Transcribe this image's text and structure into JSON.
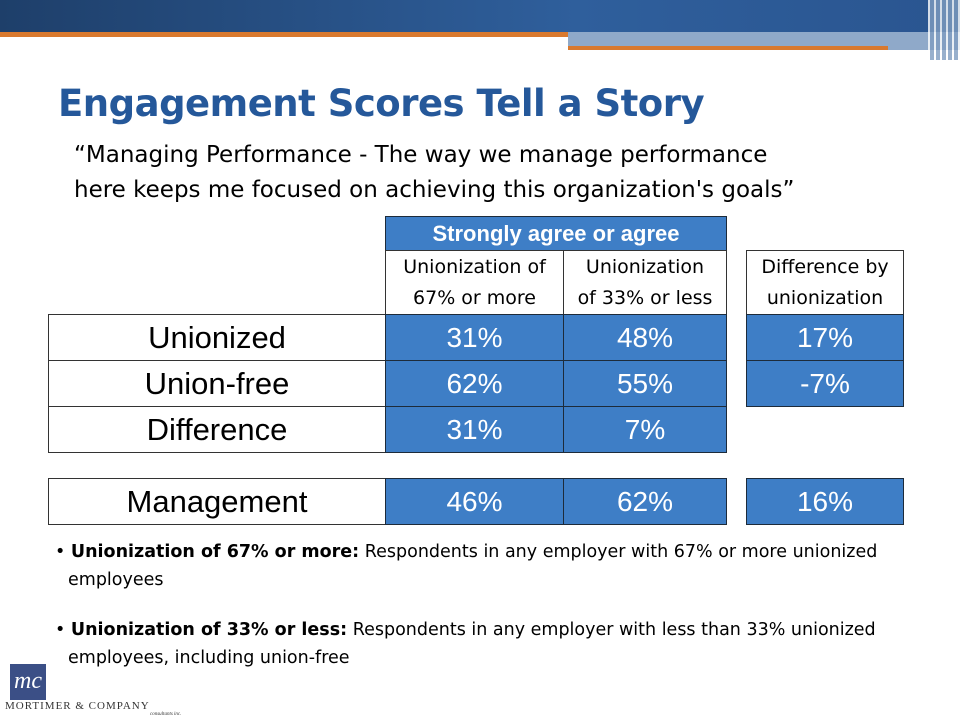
{
  "title": "Engagement Scores Tell a Story",
  "quote": [
    "“Managing Performance - The way we manage performance",
    "here keeps me focused on achieving this organization's goals”"
  ],
  "table": {
    "group_header": "Strongly agree or agree",
    "columns": [
      [
        "Unionization of",
        "67% or more"
      ],
      [
        "Unionization",
        "of 33% or less"
      ]
    ],
    "difference_header": [
      "Difference by",
      "unionization"
    ],
    "rows": [
      [
        "Unionized",
        "31%",
        "48%",
        "17%"
      ],
      [
        "Union-free",
        "62%",
        "55%",
        "-7%"
      ],
      [
        "Difference",
        "31%",
        "7%"
      ]
    ],
    "management": [
      "Management",
      "46%",
      "62%",
      "16%"
    ]
  },
  "notes": [
    {
      "term": "Unionization of 67% or more:",
      "text": "Respondents in any employer with 67% or more unionized employees"
    },
    {
      "term": "Unionization of 33% or less:",
      "text": "Respondents in any employer with less than 33% unionized employees, including union-free"
    }
  ],
  "logo": {
    "mark": "mc",
    "name": "MORTIMER & COMPANY",
    "tagline": "consultants inc."
  }
}
